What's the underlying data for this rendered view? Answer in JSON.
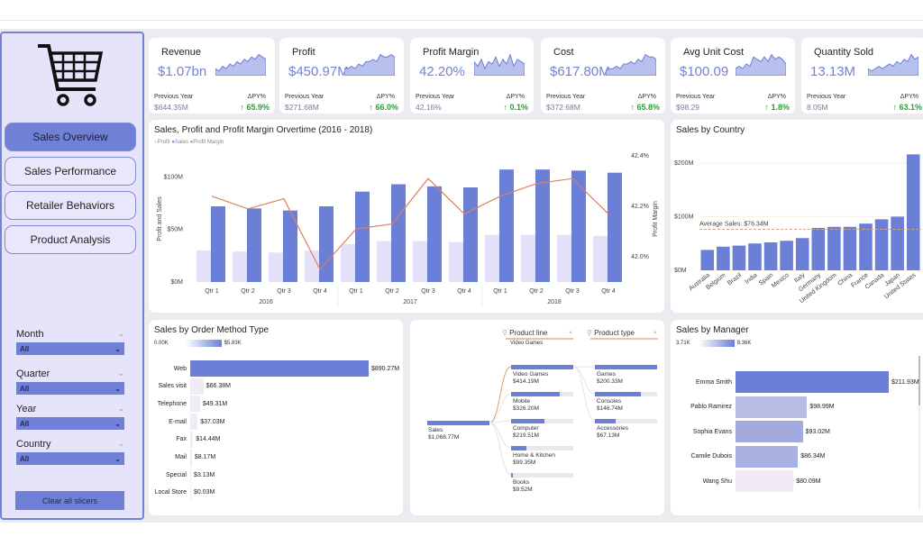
{
  "nav": {
    "items": [
      "Sales Overview",
      "Sales Performance",
      "Retailer Behaviors",
      "Product Analysis"
    ],
    "active": 0
  },
  "slicers": [
    {
      "label": "Month",
      "value": "All"
    },
    {
      "label": "Quarter",
      "value": "All"
    },
    {
      "label": "Year",
      "value": "All"
    },
    {
      "label": "Country",
      "value": "All"
    }
  ],
  "clear_label": "Clear all slicers",
  "kpis": [
    {
      "title": "Revenue",
      "value": "$1.07bn",
      "py_label": "Previous Year",
      "py": "$644.35M",
      "d_label": "ΔPY%",
      "delta": "↑ 65.9%",
      "spark": [
        3,
        2,
        4,
        3,
        5,
        4,
        6,
        5,
        7,
        6,
        8,
        7,
        9,
        8,
        7
      ]
    },
    {
      "title": "Profit",
      "value": "$450.97M",
      "py_label": "Previous Year",
      "py": "$271.68M",
      "d_label": "ΔPY%",
      "delta": "↑ 66.0%",
      "spark": [
        3,
        3,
        4,
        3,
        5,
        4,
        6,
        6,
        7,
        6,
        9,
        8,
        8,
        9,
        8
      ]
    },
    {
      "title": "Profit Margin",
      "value": "42.20%",
      "py_label": "Previous Year",
      "py": "42.16%",
      "d_label": "ΔPY%",
      "delta": "↑ 0.1%",
      "spark": [
        6,
        4,
        7,
        3,
        6,
        5,
        8,
        4,
        7,
        5,
        9,
        4,
        7,
        6,
        5
      ]
    },
    {
      "title": "Cost",
      "value": "$617.80M",
      "py_label": "Previous Year",
      "py": "$372.68M",
      "d_label": "ΔPY%",
      "delta": "↑ 65.8%",
      "spark": [
        2,
        3,
        3,
        4,
        3,
        5,
        5,
        6,
        5,
        7,
        6,
        9,
        8,
        8,
        7
      ]
    },
    {
      "title": "Avg Unit Cost",
      "value": "$100.09",
      "py_label": "Previous Year",
      "py": "$98.29",
      "d_label": "ΔPY%",
      "delta": "↑ 1.8%",
      "spark": [
        3,
        4,
        3,
        5,
        4,
        8,
        7,
        6,
        8,
        6,
        9,
        7,
        8,
        7,
        5
      ]
    },
    {
      "title": "Quantity Sold",
      "value": "13.13M",
      "py_label": "Previous Year",
      "py": "8.05M",
      "d_label": "ΔPY%",
      "delta": "↑ 63.1%",
      "spark": [
        3,
        2,
        3,
        4,
        3,
        4,
        5,
        4,
        6,
        5,
        7,
        6,
        9,
        7,
        8
      ]
    }
  ],
  "colors": {
    "accent": "#6b7fd7",
    "profit": "#e3e0f7",
    "margin": "#d9825b",
    "positive": "#2e9b3a"
  },
  "chart_data": [
    {
      "type": "bar+line",
      "title": "Sales, Profit and Profit Margin Orvertime (2016 - 2018)",
      "legend": [
        "Profit",
        "Sales",
        "Profit Margin"
      ],
      "categories": [
        "Qtr 1",
        "Qtr 2",
        "Qtr 3",
        "Qtr 4",
        "Qtr 1",
        "Qtr 2",
        "Qtr 3",
        "Qtr 4",
        "Qtr 1",
        "Qtr 2",
        "Qtr 3",
        "Qtr 4"
      ],
      "groups": [
        "2016",
        "2017",
        "2018"
      ],
      "series": [
        {
          "name": "Profit",
          "values": [
            30,
            29,
            28,
            30,
            36,
            39,
            39,
            38,
            45,
            45,
            45,
            44
          ]
        },
        {
          "name": "Sales",
          "values": [
            72,
            70,
            68,
            72,
            86,
            93,
            91,
            90,
            107,
            107,
            106,
            104
          ]
        },
        {
          "name": "Profit Margin",
          "values": [
            42.24,
            42.19,
            42.23,
            41.95,
            42.11,
            42.13,
            42.31,
            42.17,
            42.24,
            42.29,
            42.31,
            42.17
          ]
        }
      ],
      "ylabel": "Profit and Sales",
      "y2label": "Profit Margin",
      "ylim": [
        0,
        120
      ],
      "y2lim": [
        41.9,
        42.4
      ],
      "yticks": [
        "$0M",
        "$50M",
        "$100M"
      ],
      "ytick_values": [
        0,
        50,
        100
      ],
      "y2ticks": [
        "42.0%",
        "42.2%",
        "42.4%"
      ],
      "y2tick_values": [
        42.0,
        42.2,
        42.4
      ]
    },
    {
      "type": "bar",
      "title": "Sales by Country",
      "categories": [
        "Australia",
        "Belgium",
        "Brazil",
        "India",
        "Spain",
        "Mexico",
        "Italy",
        "Germany",
        "United Kingdom",
        "China",
        "France",
        "Canada",
        "Japan",
        "United States"
      ],
      "values": [
        38,
        44,
        46,
        50,
        52,
        55,
        60,
        79,
        81,
        81,
        87,
        95,
        100,
        216
      ],
      "ylim": [
        0,
        230
      ],
      "yticks": [
        "$0M",
        "$100M",
        "$200M"
      ],
      "ytick_values": [
        0,
        100,
        200
      ],
      "average_value": 76.34,
      "average_label": "Average Sales: $76.34M"
    },
    {
      "type": "bar",
      "title": "Sales by Order Method Type",
      "scale_min": "0.00K",
      "scale_max": "$5.83K",
      "categories": [
        "Web",
        "Sales visit",
        "Telephone",
        "E-mail",
        "Fax",
        "Mail",
        "Special",
        "Local Store"
      ],
      "values": [
        890.27,
        66.38,
        49.31,
        37.03,
        14.44,
        8.17,
        3.13,
        0.03
      ],
      "labels": [
        "$890.27M",
        "$66.38M",
        "$49.31M",
        "$37.03M",
        "$14.44M",
        "$8.17M",
        "$3.13M",
        "$0.03M"
      ]
    },
    {
      "type": "bar",
      "title": "Sales by Manager",
      "scale_min": "3.71K",
      "scale_max": "8.36K",
      "categories": [
        "Emma Smith",
        "Pablo Ramirez",
        "Sophia Evans",
        "Camile Dubois",
        "Wang Shu"
      ],
      "values": [
        211.93,
        98.99,
        93.02,
        86.34,
        80.09
      ],
      "labels": [
        "$211.93M",
        "$98.99M",
        "$93.02M",
        "$86.34M",
        "$80.09M"
      ],
      "colors": [
        "#6b7fd7",
        "#b9bde6",
        "#a3aae0",
        "#a9b0e2",
        "#f0e8f4"
      ]
    }
  ],
  "tree": {
    "root": {
      "label": "Sales",
      "value": "$1,068.77M"
    },
    "level1": {
      "title": "Product line",
      "selected": "Video Games",
      "items": [
        {
          "label": "Video Games",
          "value": "$414.19M",
          "v": 414.19
        },
        {
          "label": "Mobile",
          "value": "$326.20M",
          "v": 326.2
        },
        {
          "label": "Computer",
          "value": "$219.51M",
          "v": 219.51
        },
        {
          "label": "Home & Kitchen",
          "value": "$99.35M",
          "v": 99.35
        },
        {
          "label": "Books",
          "value": "$9.52M",
          "v": 9.52
        }
      ]
    },
    "level2": {
      "title": "Product type",
      "items": [
        {
          "label": "Games",
          "value": "$200.33M",
          "v": 200.33
        },
        {
          "label": "Consoles",
          "value": "$146.74M",
          "v": 146.74
        },
        {
          "label": "Accessories",
          "value": "$67.13M",
          "v": 67.13
        }
      ]
    }
  }
}
